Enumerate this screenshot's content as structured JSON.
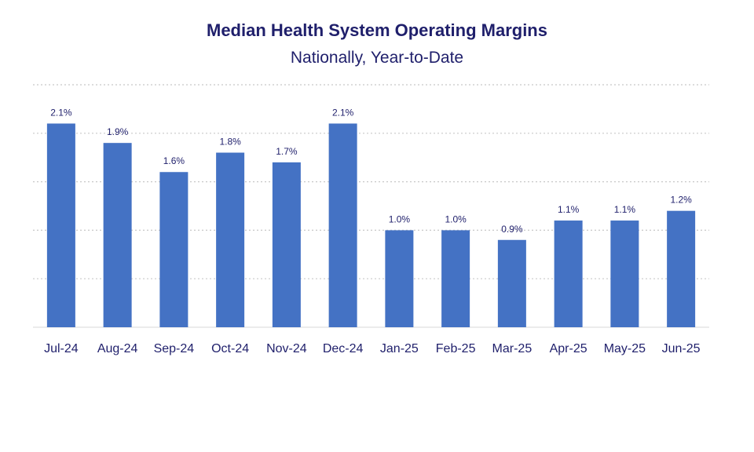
{
  "colors": {
    "bar": "#4472c4",
    "text": "#1f1f6b",
    "grid": "#c8c8c8",
    "axis": "#d9d9d9"
  },
  "chart_data": {
    "type": "bar",
    "title": "Median Health System Operating Margins",
    "subtitle": "Nationally, Year-to-Date",
    "categories": [
      "Jul-24",
      "Aug-24",
      "Sep-24",
      "Oct-24",
      "Nov-24",
      "Dec-24",
      "Jan-25",
      "Feb-25",
      "Mar-25",
      "Apr-25",
      "May-25",
      "Jun-25"
    ],
    "values": [
      2.1,
      1.9,
      1.6,
      1.8,
      1.7,
      2.1,
      1.0,
      1.0,
      0.9,
      1.1,
      1.1,
      1.2
    ],
    "value_labels": [
      "2.1%",
      "1.9%",
      "1.6%",
      "1.8%",
      "1.7%",
      "2.1%",
      "1.0%",
      "1.0%",
      "0.9%",
      "1.1%",
      "1.1%",
      "1.2%"
    ],
    "ylim": [
      0,
      2.5
    ],
    "gridlines": [
      0.5,
      1.0,
      1.5,
      2.0,
      2.5
    ],
    "grid": true,
    "legend": "none"
  }
}
